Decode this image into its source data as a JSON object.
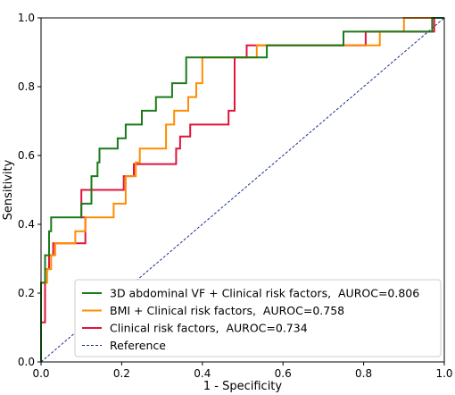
{
  "chart_data": {
    "type": "line",
    "xlabel": "1 - Specificity",
    "ylabel": "Sensitivity",
    "xlim": [
      0,
      1
    ],
    "ylim": [
      0,
      1
    ],
    "x_ticks": [
      "0.0",
      "0.2",
      "0.4",
      "0.6",
      "0.8",
      "1.0"
    ],
    "y_ticks": [
      "0.0",
      "0.2",
      "0.4",
      "0.6",
      "0.8",
      "1.0"
    ],
    "grid": false,
    "legend_position": "lower-right",
    "series": [
      {
        "name": "3D abdominal VF + Clinical risk factors,  AUROC=0.806",
        "color": "#1a7a1a",
        "style": "solid",
        "points": [
          [
            0,
            0
          ],
          [
            0,
            0.23
          ],
          [
            0.01,
            0.23
          ],
          [
            0.01,
            0.31
          ],
          [
            0.02,
            0.31
          ],
          [
            0.02,
            0.38
          ],
          [
            0.025,
            0.38
          ],
          [
            0.025,
            0.42
          ],
          [
            0.1,
            0.42
          ],
          [
            0.1,
            0.46
          ],
          [
            0.125,
            0.46
          ],
          [
            0.125,
            0.54
          ],
          [
            0.14,
            0.54
          ],
          [
            0.14,
            0.58
          ],
          [
            0.145,
            0.58
          ],
          [
            0.145,
            0.62
          ],
          [
            0.19,
            0.62
          ],
          [
            0.19,
            0.65
          ],
          [
            0.21,
            0.65
          ],
          [
            0.21,
            0.69
          ],
          [
            0.25,
            0.69
          ],
          [
            0.25,
            0.73
          ],
          [
            0.285,
            0.73
          ],
          [
            0.285,
            0.77
          ],
          [
            0.325,
            0.77
          ],
          [
            0.325,
            0.81
          ],
          [
            0.36,
            0.81
          ],
          [
            0.36,
            0.885
          ],
          [
            0.56,
            0.885
          ],
          [
            0.56,
            0.92
          ],
          [
            0.75,
            0.92
          ],
          [
            0.75,
            0.96
          ],
          [
            0.97,
            0.96
          ],
          [
            0.97,
            1.0
          ],
          [
            1.0,
            1.0
          ]
        ]
      },
      {
        "name": "BMI + Clinical risk factors,  AUROC=0.758",
        "color": "#ff8c00",
        "style": "solid",
        "points": [
          [
            0,
            0
          ],
          [
            0,
            0.23
          ],
          [
            0.015,
            0.23
          ],
          [
            0.015,
            0.27
          ],
          [
            0.025,
            0.27
          ],
          [
            0.025,
            0.31
          ],
          [
            0.035,
            0.31
          ],
          [
            0.035,
            0.345
          ],
          [
            0.085,
            0.345
          ],
          [
            0.085,
            0.38
          ],
          [
            0.11,
            0.38
          ],
          [
            0.11,
            0.42
          ],
          [
            0.18,
            0.42
          ],
          [
            0.18,
            0.46
          ],
          [
            0.21,
            0.46
          ],
          [
            0.21,
            0.54
          ],
          [
            0.235,
            0.54
          ],
          [
            0.235,
            0.58
          ],
          [
            0.245,
            0.58
          ],
          [
            0.245,
            0.62
          ],
          [
            0.31,
            0.62
          ],
          [
            0.31,
            0.69
          ],
          [
            0.33,
            0.69
          ],
          [
            0.33,
            0.73
          ],
          [
            0.365,
            0.73
          ],
          [
            0.365,
            0.77
          ],
          [
            0.385,
            0.77
          ],
          [
            0.385,
            0.81
          ],
          [
            0.4,
            0.81
          ],
          [
            0.4,
            0.885
          ],
          [
            0.535,
            0.885
          ],
          [
            0.535,
            0.92
          ],
          [
            0.84,
            0.92
          ],
          [
            0.84,
            0.96
          ],
          [
            0.9,
            0.96
          ],
          [
            0.9,
            1.0
          ],
          [
            1.0,
            1.0
          ]
        ]
      },
      {
        "name": "Clinical risk factors,  AUROC=0.734",
        "color": "#e0143c",
        "style": "solid",
        "points": [
          [
            0,
            0
          ],
          [
            0,
            0.115
          ],
          [
            0.01,
            0.115
          ],
          [
            0.01,
            0.27
          ],
          [
            0.02,
            0.27
          ],
          [
            0.02,
            0.31
          ],
          [
            0.03,
            0.31
          ],
          [
            0.03,
            0.345
          ],
          [
            0.11,
            0.345
          ],
          [
            0.11,
            0.42
          ],
          [
            0.1,
            0.42
          ],
          [
            0.1,
            0.5
          ],
          [
            0.205,
            0.5
          ],
          [
            0.205,
            0.54
          ],
          [
            0.23,
            0.54
          ],
          [
            0.23,
            0.575
          ],
          [
            0.335,
            0.575
          ],
          [
            0.335,
            0.62
          ],
          [
            0.345,
            0.62
          ],
          [
            0.345,
            0.655
          ],
          [
            0.37,
            0.655
          ],
          [
            0.37,
            0.69
          ],
          [
            0.465,
            0.69
          ],
          [
            0.465,
            0.73
          ],
          [
            0.48,
            0.73
          ],
          [
            0.48,
            0.885
          ],
          [
            0.51,
            0.885
          ],
          [
            0.51,
            0.92
          ],
          [
            0.805,
            0.92
          ],
          [
            0.805,
            0.96
          ],
          [
            0.975,
            0.96
          ],
          [
            0.975,
            1.0
          ],
          [
            1.0,
            1.0
          ]
        ]
      },
      {
        "name": "Reference",
        "color": "#1c2f8c",
        "style": "dashed",
        "points": [
          [
            0,
            0
          ],
          [
            1,
            1
          ]
        ]
      }
    ]
  }
}
